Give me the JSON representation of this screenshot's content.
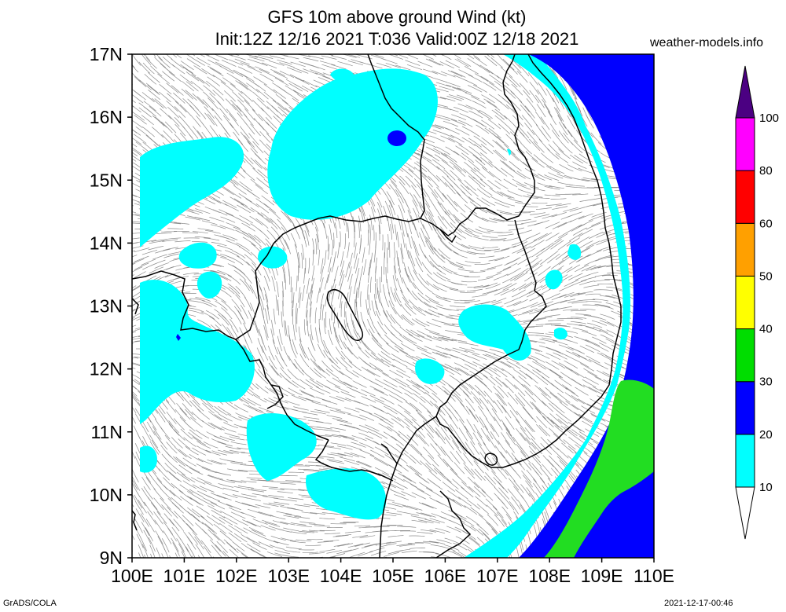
{
  "header": {
    "title_line1": "GFS 10m above ground Wind (kt)",
    "title_line2": "Init:12Z 12/16 2021 T:036 Valid:00Z 12/18 2021",
    "site": "weather-models.info"
  },
  "footer": {
    "left": "GrADS/COLA",
    "right": "2021-12-17-00:46"
  },
  "map": {
    "lat_labels": [
      "17N",
      "16N",
      "15N",
      "14N",
      "13N",
      "12N",
      "11N",
      "10N",
      "9N"
    ],
    "lon_labels": [
      "100E",
      "101E",
      "102E",
      "103E",
      "104E",
      "105E",
      "106E",
      "107E",
      "108E",
      "109E",
      "110E"
    ],
    "lat_range": [
      9,
      17
    ],
    "lon_range": [
      100,
      110
    ]
  },
  "colorbar": {
    "levels": [
      "10",
      "20",
      "30",
      "40",
      "50",
      "60",
      "80",
      "100"
    ],
    "colors": [
      "#ffffff",
      "#00ffff",
      "#0000ff",
      "#00dd00",
      "#ffff00",
      "#ffa000",
      "#ff0000",
      "#ff00ff",
      "#4b0082"
    ]
  }
}
